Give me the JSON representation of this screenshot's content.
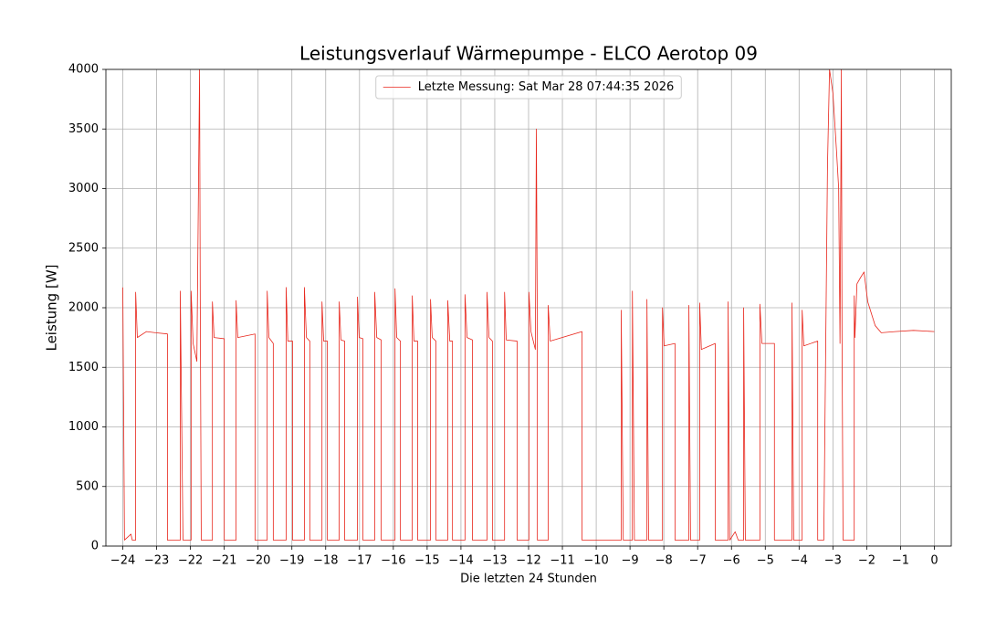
{
  "chart_data": {
    "type": "line",
    "title": "Leistungsverlauf Wärmepumpe - ELCO Aerotop 09",
    "x_label": "Die letzten 24 Stunden",
    "y_label": "Leistung [W]",
    "xlim": [
      -24.5,
      0.5
    ],
    "ylim": [
      0,
      4000
    ],
    "xticks": [
      {
        "value": -24,
        "label": "−24"
      },
      {
        "value": -23,
        "label": "−23"
      },
      {
        "value": -22,
        "label": "−22"
      },
      {
        "value": -21,
        "label": "−21"
      },
      {
        "value": -20,
        "label": "−20"
      },
      {
        "value": -19,
        "label": "−19"
      },
      {
        "value": -18,
        "label": "−18"
      },
      {
        "value": -17,
        "label": "−17"
      },
      {
        "value": -16,
        "label": "−16"
      },
      {
        "value": -15,
        "label": "−15"
      },
      {
        "value": -14,
        "label": "−14"
      },
      {
        "value": -13,
        "label": "−13"
      },
      {
        "value": -12,
        "label": "−12"
      },
      {
        "value": -11,
        "label": "−11"
      },
      {
        "value": -10,
        "label": "−10"
      },
      {
        "value": -9,
        "label": "−9"
      },
      {
        "value": -8,
        "label": "−8"
      },
      {
        "value": -7,
        "label": "−7"
      },
      {
        "value": -6,
        "label": "−6"
      },
      {
        "value": -5,
        "label": "−5"
      },
      {
        "value": -4,
        "label": "−4"
      },
      {
        "value": -3,
        "label": "−3"
      },
      {
        "value": -2,
        "label": "−2"
      },
      {
        "value": -1,
        "label": "−1"
      },
      0
    ],
    "yticks": [
      0,
      500,
      1000,
      1500,
      2000,
      2500,
      3000,
      3500,
      4000
    ],
    "grid": true,
    "legend": "upper center",
    "x": [
      -24,
      -23.95,
      -23.76,
      -23.72,
      -23.62,
      -23.62,
      -23.57,
      -23.3,
      -23.03,
      -22.68,
      -22.68,
      -22.3,
      -22.3,
      -22.22,
      -21.98,
      -21.98,
      -21.92,
      -21.81,
      -21.73,
      -21.71,
      -21.68,
      -21.35,
      -21.35,
      -21.3,
      -21.0,
      -21.0,
      -20.65,
      -20.65,
      -20.6,
      -20.09,
      -20.09,
      -19.73,
      -19.73,
      -19.68,
      -19.55,
      -19.55,
      -19.17,
      -19.17,
      -19.12,
      -18.98,
      -18.98,
      -18.63,
      -18.63,
      -18.57,
      -18.47,
      -18.47,
      -18.11,
      -18.11,
      -18.06,
      -17.95,
      -17.95,
      -17.6,
      -17.6,
      -17.55,
      -17.44,
      -17.44,
      -17.06,
      -17.06,
      -17.01,
      -16.9,
      -16.9,
      -16.55,
      -16.55,
      -16.49,
      -16.36,
      -16.36,
      -15.95,
      -15.95,
      -15.9,
      -15.79,
      -15.79,
      -15.44,
      -15.44,
      -15.39,
      -15.28,
      -15.28,
      -14.9,
      -14.9,
      -14.85,
      -14.74,
      -14.74,
      -14.39,
      -14.39,
      -14.33,
      -14.25,
      -14.25,
      -13.88,
      -13.88,
      -13.82,
      -13.66,
      -13.66,
      -13.23,
      -13.23,
      -13.17,
      -13.07,
      -13.07,
      -12.71,
      -12.71,
      -12.66,
      -12.34,
      -12.34,
      -11.99,
      -11.99,
      -11.93,
      -11.8,
      -11.77,
      -11.74,
      -11.74,
      -11.42,
      -11.42,
      -11.36,
      -10.42,
      -10.42,
      -9.26,
      -9.26,
      -9.2,
      -8.93,
      -8.93,
      -8.87,
      -8.5,
      -8.5,
      -8.45,
      -8.04,
      -8.04,
      -7.99,
      -7.67,
      -7.67,
      -7.26,
      -7.26,
      -7.21,
      -6.94,
      -6.94,
      -6.89,
      -6.48,
      -6.48,
      -6.1,
      -6.1,
      -6.05,
      -5.89,
      -5.8,
      -5.64,
      -5.64,
      -5.59,
      -5.16,
      -5.16,
      -5.1,
      -4.73,
      -4.73,
      -4.21,
      -4.21,
      -4.16,
      -3.91,
      -3.91,
      -3.86,
      -3.45,
      -3.45,
      -3.27,
      -3.16,
      -3.1,
      -3.0,
      -2.89,
      -2.83,
      -2.79,
      -2.75,
      -2.73,
      -2.7,
      -2.37,
      -2.37,
      -2.35,
      -2.29,
      -2.19,
      -2.08,
      -1.97,
      -1.75,
      -1.57,
      -1.16,
      -0.62,
      0
    ],
    "series": [
      {
        "name": "Letzte Messung: Sat Mar 28 07:44:35 2026",
        "color": "#e8261c",
        "values": [
          2170,
          50,
          100,
          50,
          50,
          2130,
          1750,
          1800,
          1790,
          1780,
          50,
          50,
          2140,
          50,
          50,
          2140,
          1700,
          1550,
          4000,
          2070,
          50,
          50,
          2050,
          1750,
          1740,
          50,
          50,
          2060,
          1750,
          1780,
          50,
          50,
          2140,
          1750,
          1700,
          50,
          50,
          2170,
          1720,
          1720,
          50,
          50,
          2170,
          1750,
          1720,
          50,
          50,
          2050,
          1720,
          1720,
          50,
          50,
          2050,
          1730,
          1720,
          50,
          50,
          2090,
          1750,
          1740,
          50,
          50,
          2130,
          1750,
          1730,
          50,
          50,
          2160,
          1750,
          1720,
          50,
          50,
          2100,
          1720,
          1720,
          50,
          50,
          2070,
          1750,
          1720,
          50,
          50,
          2060,
          1720,
          1720,
          50,
          50,
          2110,
          1750,
          1730,
          50,
          50,
          2130,
          1750,
          1720,
          50,
          50,
          2130,
          1730,
          1720,
          50,
          50,
          2130,
          1800,
          1650,
          3500,
          1750,
          50,
          50,
          2020,
          1720,
          1800,
          50,
          50,
          1980,
          50,
          50,
          2140,
          50,
          50,
          2070,
          50,
          50,
          2000,
          1680,
          1700,
          50,
          50,
          2020,
          50,
          50,
          2040,
          1650,
          1700,
          50,
          50,
          2050,
          50,
          120,
          50,
          50,
          2000,
          50,
          50,
          2030,
          1700,
          1700,
          50,
          50,
          2040,
          50,
          50,
          1980,
          1680,
          1720,
          50,
          50,
          3200,
          4000,
          3800,
          3300,
          3000,
          1700,
          4000,
          1750,
          50,
          50,
          2100,
          1750,
          2200,
          2250,
          2300,
          2050,
          1850,
          1790,
          1800,
          1810,
          1800
        ]
      }
    ]
  }
}
